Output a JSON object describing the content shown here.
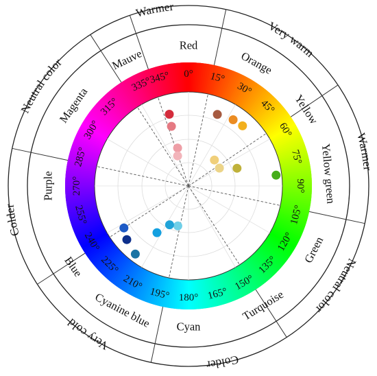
{
  "outer_labels": [
    {
      "text": "Warmer",
      "angle": -11
    },
    {
      "text": "Very warm",
      "angle": 35
    },
    {
      "text": "Warmer",
      "angle": 79
    },
    {
      "text": "Neutral color",
      "angle": 124
    },
    {
      "text": "Colder",
      "angle": 169
    },
    {
      "text": "Very cold",
      "angle": 214
    },
    {
      "text": "Colder",
      "angle": 259
    },
    {
      "text": "Neutral color",
      "angle": 304
    }
  ],
  "hue_names": [
    {
      "text": "Red",
      "angle": 0
    },
    {
      "text": "Orange",
      "angle": 29
    },
    {
      "text": "Yellow",
      "angle": 57
    },
    {
      "text": "Yellow green",
      "angle": 85
    },
    {
      "text": "Green",
      "angle": 117
    },
    {
      "text": "Turquoise",
      "angle": 148
    },
    {
      "text": "Cyan",
      "angle": 180
    },
    {
      "text": "Cyanine blue",
      "angle": 208
    },
    {
      "text": "Blue",
      "angle": 235
    },
    {
      "text": "Purple",
      "angle": 270
    },
    {
      "text": "Magenta",
      "angle": 305
    },
    {
      "text": "Mauve",
      "angle": 334
    }
  ],
  "degree_ticks": [
    0,
    15,
    30,
    45,
    60,
    75,
    90,
    105,
    120,
    135,
    150,
    165,
    180,
    195,
    210,
    225,
    240,
    255,
    270,
    285,
    300,
    315,
    335,
    345
  ],
  "sector_dividers": [
    -19,
    12,
    56,
    102,
    147,
    192,
    237,
    282,
    327
  ],
  "samples": [
    {
      "hue": 345,
      "radius": 0.79,
      "color": "#d42c3c"
    },
    {
      "hue": 344,
      "radius": 0.66,
      "color": "#e57a83"
    },
    {
      "hue": 344,
      "radius": 0.42,
      "color": "#ee9ea6"
    },
    {
      "hue": 340,
      "radius": 0.34,
      "color": "#f2b4ba"
    },
    {
      "hue": 22,
      "radius": 0.82,
      "color": "#a65a40"
    },
    {
      "hue": 34,
      "radius": 0.85,
      "color": "#eb8c22"
    },
    {
      "hue": 42,
      "radius": 0.86,
      "color": "#f2b01e"
    },
    {
      "hue": 45,
      "radius": 0.39,
      "color": "#f0cf7a"
    },
    {
      "hue": 60,
      "radius": 0.38,
      "color": "#ecd488"
    },
    {
      "hue": 70,
      "radius": 0.55,
      "color": "#bfb13a"
    },
    {
      "hue": 83,
      "radius": 0.94,
      "color": "#46ad1a"
    },
    {
      "hue": 195,
      "radius": 0.44,
      "color": "#6fcfe8"
    },
    {
      "hue": 206,
      "radius": 0.46,
      "color": "#20a3d8"
    },
    {
      "hue": 214,
      "radius": 0.6,
      "color": "#14a0e0"
    },
    {
      "hue": 218,
      "radius": 0.92,
      "color": "#1a74a4"
    },
    {
      "hue": 229,
      "radius": 0.87,
      "color": "#0d2f8c"
    },
    {
      "hue": 237,
      "radius": 0.82,
      "color": "#1d5ac6"
    }
  ]
}
